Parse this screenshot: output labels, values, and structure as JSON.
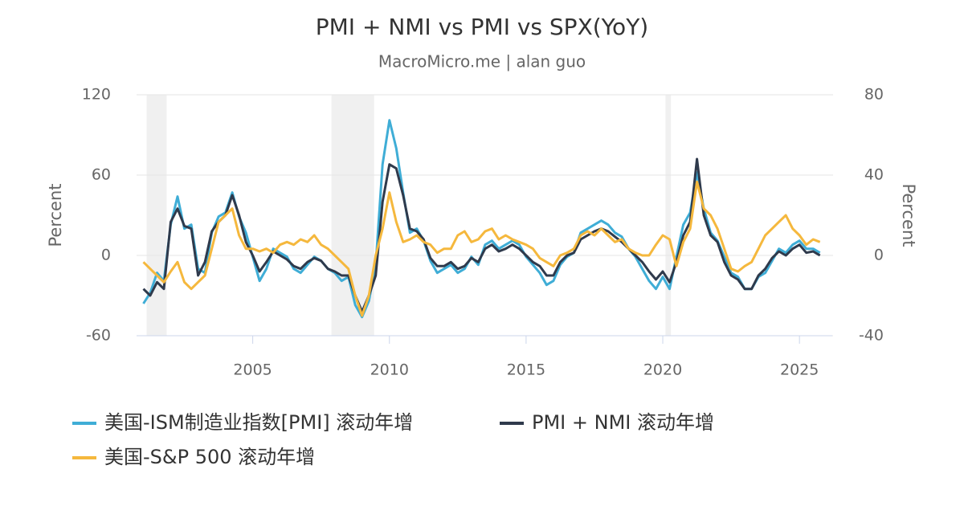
{
  "chart_data": {
    "type": "line",
    "title": "PMI + NMI vs PMI vs SPX(YoY)",
    "subtitle": "MacroMicro.me | alan guo",
    "y_label": "Percent",
    "y2_label": "Percent",
    "x": [
      2001,
      2001.25,
      2001.5,
      2001.75,
      2002,
      2002.25,
      2002.5,
      2002.75,
      2003,
      2003.25,
      2003.5,
      2003.75,
      2004,
      2004.25,
      2004.5,
      2004.75,
      2005,
      2005.25,
      2005.5,
      2005.75,
      2006,
      2006.25,
      2006.5,
      2006.75,
      2007,
      2007.25,
      2007.5,
      2007.75,
      2008,
      2008.25,
      2008.5,
      2008.75,
      2009,
      2009.25,
      2009.5,
      2009.75,
      2010,
      2010.25,
      2010.5,
      2010.75,
      2011,
      2011.25,
      2011.5,
      2011.75,
      2012,
      2012.25,
      2012.5,
      2012.75,
      2013,
      2013.25,
      2013.5,
      2013.75,
      2014,
      2014.25,
      2014.5,
      2014.75,
      2015,
      2015.25,
      2015.5,
      2015.75,
      2016,
      2016.25,
      2016.5,
      2016.75,
      2017,
      2017.25,
      2017.5,
      2017.75,
      2018,
      2018.25,
      2018.5,
      2018.75,
      2019,
      2019.25,
      2019.5,
      2019.75,
      2020,
      2020.25,
      2020.5,
      2020.75,
      2021,
      2021.25,
      2021.5,
      2021.75,
      2022,
      2022.25,
      2022.5,
      2022.75,
      2023,
      2023.25,
      2023.5,
      2023.75,
      2024,
      2024.25,
      2024.5,
      2024.75,
      2025,
      2025.25,
      2025.5,
      2025.75
    ],
    "series": [
      {
        "name": "美国-ISM制造业指数[PMI] 滚动年增",
        "color": "#3fadd6",
        "values": [
          -36,
          -28,
          -13,
          -19,
          23,
          44,
          20,
          23,
          -10,
          -13,
          17,
          29,
          32,
          47,
          29,
          17,
          -1,
          -19,
          -10,
          5,
          2,
          -1,
          -10,
          -13,
          -7,
          -1,
          -4,
          -10,
          -13,
          -19,
          -16,
          -37,
          -46,
          -34,
          -7,
          68,
          101,
          80,
          47,
          17,
          20,
          11,
          -4,
          -13,
          -10,
          -7,
          -13,
          -10,
          -1,
          -7,
          8,
          11,
          5,
          8,
          11,
          8,
          -1,
          -7,
          -13,
          -22,
          -19,
          -7,
          -1,
          2,
          17,
          20,
          23,
          26,
          23,
          17,
          14,
          5,
          -1,
          -10,
          -19,
          -25,
          -16,
          -25,
          -1,
          23,
          32,
          62,
          35,
          17,
          11,
          -1,
          -13,
          -16,
          -25,
          -25,
          -16,
          -13,
          -4,
          5,
          2,
          8,
          11,
          5,
          5,
          2
        ]
      },
      {
        "name": "PMI + NMI 滚动年增",
        "color": "#2f3a4c",
        "values": [
          -25,
          -30,
          -20,
          -25,
          25,
          35,
          22,
          20,
          -15,
          -5,
          18,
          25,
          30,
          45,
          30,
          10,
          0,
          -12,
          -5,
          3,
          0,
          -3,
          -8,
          -10,
          -5,
          -2,
          -4,
          -10,
          -12,
          -15,
          -15,
          -30,
          -42,
          -30,
          -15,
          40,
          68,
          65,
          45,
          20,
          18,
          12,
          -2,
          -8,
          -8,
          -5,
          -10,
          -8,
          -2,
          -5,
          5,
          8,
          3,
          5,
          8,
          5,
          0,
          -5,
          -8,
          -15,
          -15,
          -5,
          0,
          2,
          12,
          15,
          18,
          20,
          18,
          14,
          10,
          5,
          0,
          -5,
          -12,
          -18,
          -12,
          -20,
          -5,
          15,
          25,
          72,
          30,
          15,
          10,
          -5,
          -15,
          -18,
          -25,
          -25,
          -15,
          -10,
          -2,
          3,
          0,
          5,
          8,
          2,
          3,
          0
        ]
      },
      {
        "name": "美国-S&P 500 滚动年增",
        "color": "#f5b83d",
        "values": [
          -5,
          -10,
          -15,
          -20,
          -12,
          -5,
          -20,
          -25,
          -20,
          -15,
          5,
          25,
          30,
          35,
          15,
          5,
          5,
          3,
          5,
          2,
          8,
          10,
          8,
          12,
          10,
          15,
          8,
          5,
          0,
          -5,
          -10,
          -30,
          -45,
          -30,
          0,
          20,
          47,
          25,
          10,
          12,
          15,
          10,
          8,
          2,
          5,
          5,
          15,
          18,
          10,
          12,
          18,
          20,
          12,
          15,
          12,
          10,
          8,
          5,
          -2,
          -5,
          -8,
          0,
          2,
          5,
          15,
          18,
          15,
          20,
          15,
          10,
          12,
          5,
          2,
          0,
          0,
          8,
          15,
          12,
          -8,
          10,
          20,
          55,
          35,
          30,
          20,
          5,
          -10,
          -12,
          -8,
          -5,
          5,
          15,
          20,
          25,
          30,
          20,
          15,
          8,
          12,
          10
        ]
      }
    ],
    "shaded_periods": [
      [
        2001.12,
        2001.85
      ],
      [
        2007.88,
        2009.44
      ],
      [
        2020.1,
        2020.3
      ]
    ],
    "xlim": [
      2000.75,
      2026.2
    ],
    "xticks": [
      2005,
      2010,
      2015,
      2020,
      2025
    ],
    "ylim": [
      -60,
      120
    ],
    "yticks": [
      -60,
      0,
      60,
      120
    ],
    "y2lim": [
      -40,
      80
    ],
    "y2ticks": [
      -40,
      0,
      40,
      80
    ],
    "grid": true
  }
}
